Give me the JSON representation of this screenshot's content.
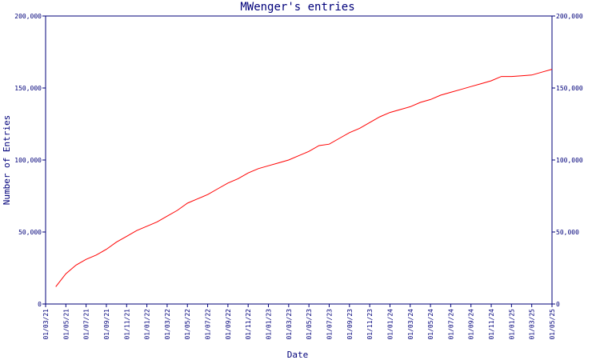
{
  "chart_data": {
    "type": "line",
    "title": "MWenger's entries",
    "xlabel": "Date",
    "ylabel": "Number of Entries",
    "ylim": [
      0,
      200000
    ],
    "y_ticks": [
      {
        "value": 0,
        "label": "0"
      },
      {
        "value": 50000,
        "label": "50,000"
      },
      {
        "value": 100000,
        "label": "100,000"
      },
      {
        "value": 150000,
        "label": "150,000"
      },
      {
        "value": 200000,
        "label": "200,000"
      }
    ],
    "y_ticks_right": true,
    "x_ticks": [
      "01/03/21",
      "01/05/21",
      "01/07/21",
      "01/09/21",
      "01/11/21",
      "01/01/22",
      "01/03/22",
      "01/05/22",
      "01/07/22",
      "01/09/22",
      "01/11/22",
      "01/01/23",
      "01/03/23",
      "01/05/23",
      "01/07/23",
      "01/09/23",
      "01/11/23",
      "01/01/24",
      "01/03/24",
      "01/05/24",
      "01/07/24",
      "01/09/24",
      "01/11/24",
      "01/01/25",
      "01/03/25",
      "01/05/25"
    ],
    "xlim": [
      "01/03/21",
      "01/05/25"
    ],
    "grid": false,
    "line_color": "#ff0000",
    "axis_color": "#00007a",
    "series": [
      {
        "x": [
          "01/04/21",
          "01/05/21",
          "01/06/21",
          "01/07/21",
          "01/08/21",
          "01/09/21",
          "01/10/21",
          "01/11/21",
          "01/12/21",
          "01/01/22",
          "01/02/22",
          "01/03/22",
          "01/04/22",
          "01/05/22",
          "01/06/22",
          "01/07/22",
          "01/08/22",
          "01/09/22",
          "01/10/22",
          "01/11/22",
          "01/12/22",
          "01/01/23",
          "01/02/23",
          "01/03/23",
          "01/04/23",
          "01/05/23",
          "01/06/23",
          "01/07/23",
          "01/08/23",
          "01/09/23",
          "01/10/23",
          "01/11/23",
          "01/12/23",
          "01/01/24",
          "01/02/24",
          "01/03/24",
          "01/04/24",
          "01/05/24",
          "01/06/24",
          "01/07/24",
          "01/08/24",
          "01/09/24",
          "01/10/24",
          "01/11/24",
          "01/12/24",
          "01/01/25",
          "01/02/25",
          "01/03/25",
          "01/04/25",
          "01/05/25"
        ],
        "values": [
          12000,
          21000,
          27000,
          31000,
          34000,
          38000,
          43000,
          47000,
          51000,
          54000,
          57000,
          61000,
          65000,
          70000,
          73000,
          76000,
          80000,
          84000,
          87000,
          91000,
          94000,
          96000,
          98000,
          100000,
          103000,
          106000,
          110000,
          111000,
          115000,
          119000,
          122000,
          126000,
          130000,
          133000,
          135000,
          137000,
          140000,
          142000,
          145000,
          147000,
          149000,
          151000,
          153000,
          155000,
          158000,
          158000,
          158500,
          159000,
          161000,
          163000
        ]
      }
    ]
  }
}
